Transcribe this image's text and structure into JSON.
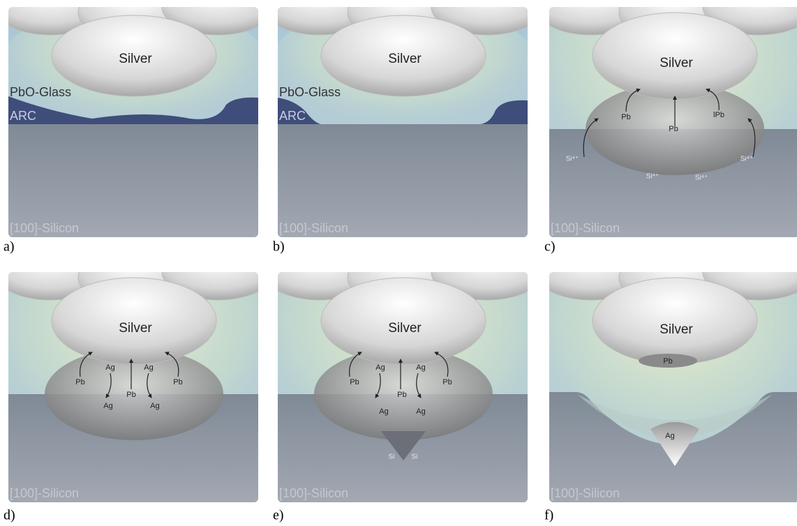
{
  "panels": [
    {
      "label": "a)",
      "silver": "Silver",
      "glass": "PbO-Glass",
      "arc": "ARC",
      "substrate": "[100]-Silicon"
    },
    {
      "label": "b)",
      "silver": "Silver",
      "glass": "PbO-Glass",
      "arc": "ARC",
      "substrate": "[100]-Silicon"
    },
    {
      "label": "c)",
      "silver": "Silver",
      "substrate": "[100]-Silicon",
      "annotations": [
        "Pb",
        "Pb",
        "lPb",
        "Si⁴⁺",
        "Si⁴⁺",
        "Si⁴⁺",
        "Si⁴⁺"
      ]
    },
    {
      "label": "d)",
      "silver": "Silver",
      "substrate": "[100]-Silicon",
      "annotations": [
        "Pb",
        "Ag",
        "Ag",
        "Pb",
        "Pb",
        "Ag",
        "Ag"
      ]
    },
    {
      "label": "e)",
      "silver": "Silver",
      "substrate": "[100]-Silicon",
      "annotations": [
        "Pb",
        "Ag",
        "Ag",
        "Pb",
        "Pb",
        "Ag",
        "Ag",
        "Si",
        "Si"
      ]
    },
    {
      "label": "f)",
      "silver": "Silver",
      "substrate": "[100]-Silicon",
      "annotations": [
        "Pb",
        "Ag"
      ]
    }
  ]
}
